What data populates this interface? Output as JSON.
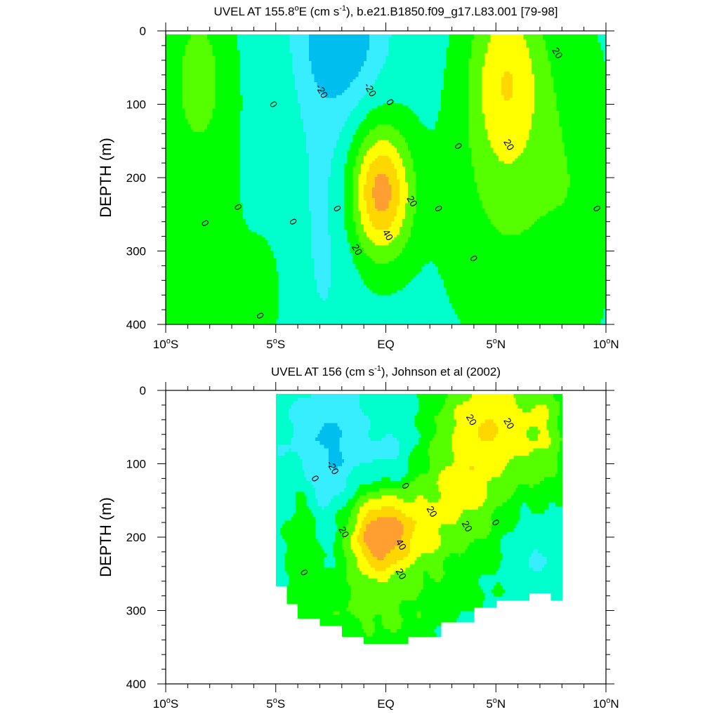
{
  "chart_data": [
    {
      "type": "contour",
      "title": "UVEL AT 155.8°E (cm s⁻¹), b.e21.B1850.f09_g17.L83.001 [79-98]",
      "title_parts": {
        "pre": "UVEL AT 155.8",
        "deg": "o",
        "mid": "E (cm s",
        "sup": "-1",
        "post": "), b.e21.B1850.f09_g17.L83.001 [79-98]"
      },
      "xlabel": "",
      "ylabel": "DEPTH (m)",
      "xlim": [
        -10,
        10
      ],
      "ylim": [
        400,
        0
      ],
      "x_ticks": [
        {
          "value": -10,
          "num": "10",
          "deg": "o",
          "hem": "S"
        },
        {
          "value": -5,
          "num": "5",
          "deg": "o",
          "hem": "S"
        },
        {
          "value": 0,
          "num": "EQ",
          "deg": "",
          "hem": ""
        },
        {
          "value": 5,
          "num": "5",
          "deg": "o",
          "hem": "N"
        },
        {
          "value": 10,
          "num": "10",
          "deg": "o",
          "hem": "N"
        }
      ],
      "y_ticks": [
        {
          "value": 0,
          "label": "0"
        },
        {
          "value": 100,
          "label": "100"
        },
        {
          "value": 200,
          "label": "200"
        },
        {
          "value": 300,
          "label": "300"
        },
        {
          "value": 400,
          "label": "400"
        }
      ],
      "data_extent": {
        "x": [
          -10,
          10
        ],
        "depth": [
          5,
          400
        ]
      },
      "contour_interval": 10,
      "colors": {
        "lt_-20": "#00bfef",
        "-20_-10": "#36eeff",
        "-10_0": "#00ffcc",
        "0_10": "#00ff00",
        "10_20": "#55ff00",
        "20_30": "#ffff00",
        "30_40": "#ffd700",
        "gt_40": "#ff9f32"
      },
      "features": [
        {
          "name": "Equatorial Undercurrent",
          "x": -0.2,
          "depth": 220,
          "peak_u": 48
        },
        {
          "name": "North eastward jet",
          "x": 5.5,
          "depth": 60,
          "peak_u": 28
        },
        {
          "name": "Surface westward flow",
          "x": -2.0,
          "depth": 10,
          "peak_u": -28
        },
        {
          "name": "South eastward flow",
          "x": -8.5,
          "depth": 60,
          "peak_u": 14
        }
      ],
      "contour_labels": [
        {
          "x": -5.1,
          "depth": 100,
          "text": "0"
        },
        {
          "x": -2.9,
          "depth": 82,
          "text": "-20"
        },
        {
          "x": -0.7,
          "depth": 80,
          "text": "-20"
        },
        {
          "x": 0.2,
          "depth": 97,
          "text": "0"
        },
        {
          "x": 7.8,
          "depth": 30,
          "text": "20"
        },
        {
          "x": 5.6,
          "depth": 155,
          "text": "20"
        },
        {
          "x": 3.3,
          "depth": 157,
          "text": "0"
        },
        {
          "x": -8.2,
          "depth": 262,
          "text": "0"
        },
        {
          "x": -6.7,
          "depth": 240,
          "text": "0"
        },
        {
          "x": -4.2,
          "depth": 260,
          "text": "0"
        },
        {
          "x": -2.2,
          "depth": 242,
          "text": "0"
        },
        {
          "x": 1.2,
          "depth": 232,
          "text": "20"
        },
        {
          "x": 0.1,
          "depth": 278,
          "text": "40"
        },
        {
          "x": -1.3,
          "depth": 298,
          "text": "20"
        },
        {
          "x": 2.4,
          "depth": 242,
          "text": "0"
        },
        {
          "x": 9.6,
          "depth": 242,
          "text": "0"
        },
        {
          "x": 4.0,
          "depth": 310,
          "text": "0"
        },
        {
          "x": -5.7,
          "depth": 388,
          "text": "0"
        }
      ]
    },
    {
      "type": "contour",
      "title": "UVEL AT 156 (cm s⁻¹), Johnson et al (2002)",
      "title_parts": {
        "pre": "UVEL AT 156",
        "deg": "",
        "mid": " (cm s",
        "sup": "-1",
        "post": "), Johnson et al (2002)"
      },
      "xlabel": "",
      "ylabel": "DEPTH (m)",
      "xlim": [
        -10,
        10
      ],
      "ylim": [
        400,
        0
      ],
      "x_ticks": [
        {
          "value": -10,
          "num": "10",
          "deg": "o",
          "hem": "S"
        },
        {
          "value": -5,
          "num": "5",
          "deg": "o",
          "hem": "S"
        },
        {
          "value": 0,
          "num": "EQ",
          "deg": "",
          "hem": ""
        },
        {
          "value": 5,
          "num": "5",
          "deg": "o",
          "hem": "N"
        },
        {
          "value": 10,
          "num": "10",
          "deg": "o",
          "hem": "N"
        }
      ],
      "y_ticks": [
        {
          "value": 0,
          "label": "0"
        },
        {
          "value": 100,
          "label": "100"
        },
        {
          "value": 200,
          "label": "200"
        },
        {
          "value": 300,
          "label": "300"
        },
        {
          "value": 400,
          "label": "400"
        }
      ],
      "data_extent": {
        "x": [
          -5,
          8
        ],
        "depth": [
          5,
          350
        ]
      },
      "contour_interval": 10,
      "colors": {
        "lt_-20": "#00bfef",
        "-20_-10": "#36eeff",
        "-10_0": "#00ffcc",
        "0_10": "#00ff00",
        "10_20": "#55ff00",
        "20_30": "#ffff00",
        "30_40": "#ffd700",
        "gt_40": "#ff9f32"
      },
      "features": [
        {
          "name": "Equatorial Undercurrent",
          "x": -0.4,
          "depth": 200,
          "peak_u": 46
        },
        {
          "name": "North near-surface eastward flow",
          "x": 5.0,
          "depth": 60,
          "peak_u": 24
        },
        {
          "name": "Westward flow",
          "x": -2.5,
          "depth": 90,
          "peak_u": -24
        }
      ],
      "contour_labels": [
        {
          "x": 3.9,
          "depth": 40,
          "text": "20"
        },
        {
          "x": 5.6,
          "depth": 45,
          "text": "20"
        },
        {
          "x": -2.4,
          "depth": 105,
          "text": "-20"
        },
        {
          "x": -3.2,
          "depth": 120,
          "text": "0"
        },
        {
          "x": 0.9,
          "depth": 130,
          "text": "0"
        },
        {
          "x": 2.1,
          "depth": 165,
          "text": "20"
        },
        {
          "x": 3.7,
          "depth": 185,
          "text": "20"
        },
        {
          "x": 5.0,
          "depth": 180,
          "text": "0"
        },
        {
          "x": -1.9,
          "depth": 193,
          "text": "20"
        },
        {
          "x": 0.7,
          "depth": 210,
          "text": "40"
        },
        {
          "x": 0.7,
          "depth": 250,
          "text": "20"
        },
        {
          "x": -3.7,
          "depth": 248,
          "text": "0"
        }
      ]
    }
  ]
}
